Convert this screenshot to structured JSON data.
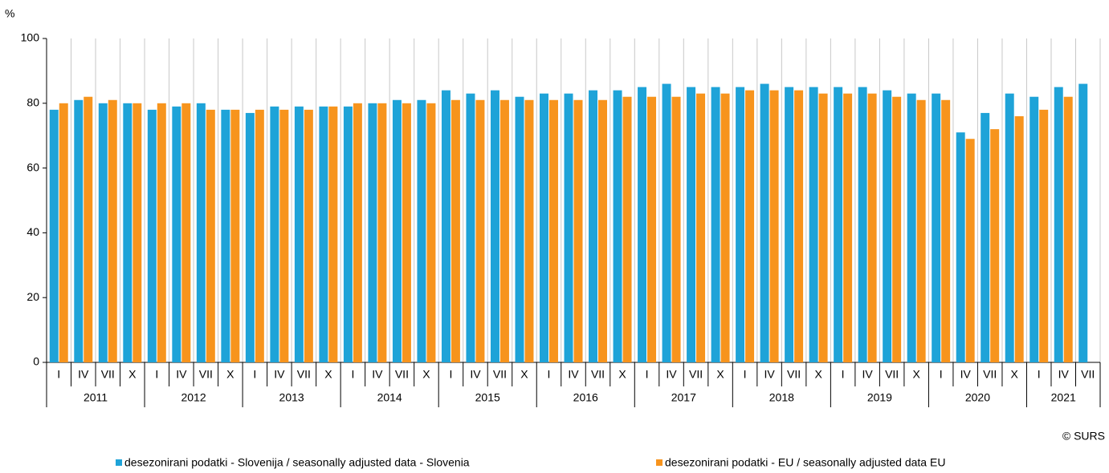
{
  "chart_data": {
    "type": "bar",
    "y_label": "%",
    "credit": "© SURS",
    "categories": [
      "I",
      "IV",
      "VII",
      "X",
      "I",
      "IV",
      "VII",
      "X",
      "I",
      "IV",
      "VII",
      "X",
      "I",
      "IV",
      "VII",
      "X",
      "I",
      "IV",
      "VII",
      "X",
      "I",
      "IV",
      "VII",
      "X",
      "I",
      "IV",
      "VII",
      "X",
      "I",
      "IV",
      "VII",
      "X",
      "I",
      "IV",
      "VII",
      "X",
      "I",
      "IV",
      "VII",
      "X",
      "I",
      "IV",
      "VII"
    ],
    "years": [
      "2011",
      "2012",
      "2013",
      "2014",
      "2015",
      "2016",
      "2017",
      "2018",
      "2019",
      "2020",
      "2021"
    ],
    "series": [
      {
        "name": "desezonirani podatki - Slovenija / seasonally adjusted data - Slovenia",
        "color": "#1ea3d8",
        "values": [
          78,
          81,
          80,
          80,
          78,
          79,
          80,
          78,
          77,
          79,
          79,
          79,
          79,
          80,
          81,
          81,
          84,
          83,
          84,
          82,
          83,
          83,
          84,
          84,
          85,
          86,
          85,
          85,
          85,
          86,
          85,
          85,
          85,
          85,
          84,
          83,
          83,
          71,
          77,
          83,
          82,
          85,
          86
        ]
      },
      {
        "name": "desezonirani podatki - EU / seasonally adjusted data EU",
        "color": "#f7941d",
        "values": [
          80,
          82,
          81,
          80,
          80,
          80,
          78,
          78,
          78,
          78,
          78,
          79,
          80,
          80,
          80,
          80,
          81,
          81,
          81,
          81,
          81,
          81,
          81,
          82,
          82,
          82,
          83,
          83,
          84,
          84,
          84,
          83,
          83,
          83,
          82,
          81,
          81,
          69,
          72,
          76,
          78,
          82,
          null
        ]
      }
    ],
    "ylim": [
      0,
      100
    ],
    "yticks": [
      0,
      20,
      40,
      60,
      80,
      100
    ],
    "grid": true
  }
}
